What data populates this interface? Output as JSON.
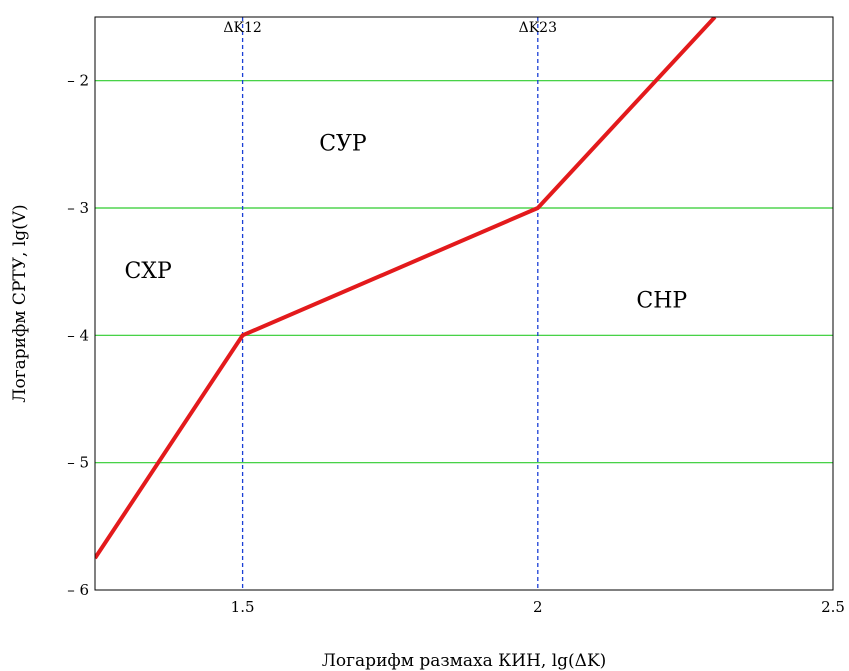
{
  "chart_data": {
    "type": "line",
    "xlabel": "Логарифм размаха КИН, lg(ΔK)",
    "ylabel": "Логарифм СРТУ, lg(V)",
    "xlim": [
      1.25,
      2.5
    ],
    "ylim": [
      -6,
      -1.5
    ],
    "x_ticks": [
      {
        "value": 1.5,
        "label": "1.5"
      },
      {
        "value": 2,
        "label": "2"
      },
      {
        "value": 2.5,
        "label": "2.5"
      }
    ],
    "y_ticks": [
      {
        "value": -2,
        "label": "– 2"
      },
      {
        "value": -3,
        "label": "– 3"
      },
      {
        "value": -4,
        "label": "– 4"
      },
      {
        "value": -5,
        "label": "– 5"
      },
      {
        "value": -6,
        "label": "– 6"
      }
    ],
    "grid": "horizontal",
    "series": [
      {
        "color": "#e31a1c",
        "x": [
          1.25,
          1.5,
          2.0,
          2.3
        ],
        "y": [
          -5.75,
          -4.0,
          -3.0,
          -1.5
        ]
      }
    ],
    "vertical_lines": [
      {
        "x": 1.5,
        "label": "ΔK12",
        "color": "#1a3fd6"
      },
      {
        "x": 2.0,
        "label": "ΔK23",
        "color": "#1a3fd6"
      }
    ],
    "regions": [
      {
        "text": "СХР",
        "x": 1.34,
        "y": -3.55
      },
      {
        "text": "СУР",
        "x": 1.67,
        "y": -2.55
      },
      {
        "text": "СНР",
        "x": 2.21,
        "y": -3.78
      }
    ],
    "colors": {
      "grid": "#2ecc2e",
      "line": "#e31a1c",
      "vline": "#1a3fd6",
      "frame": "#000000"
    }
  }
}
